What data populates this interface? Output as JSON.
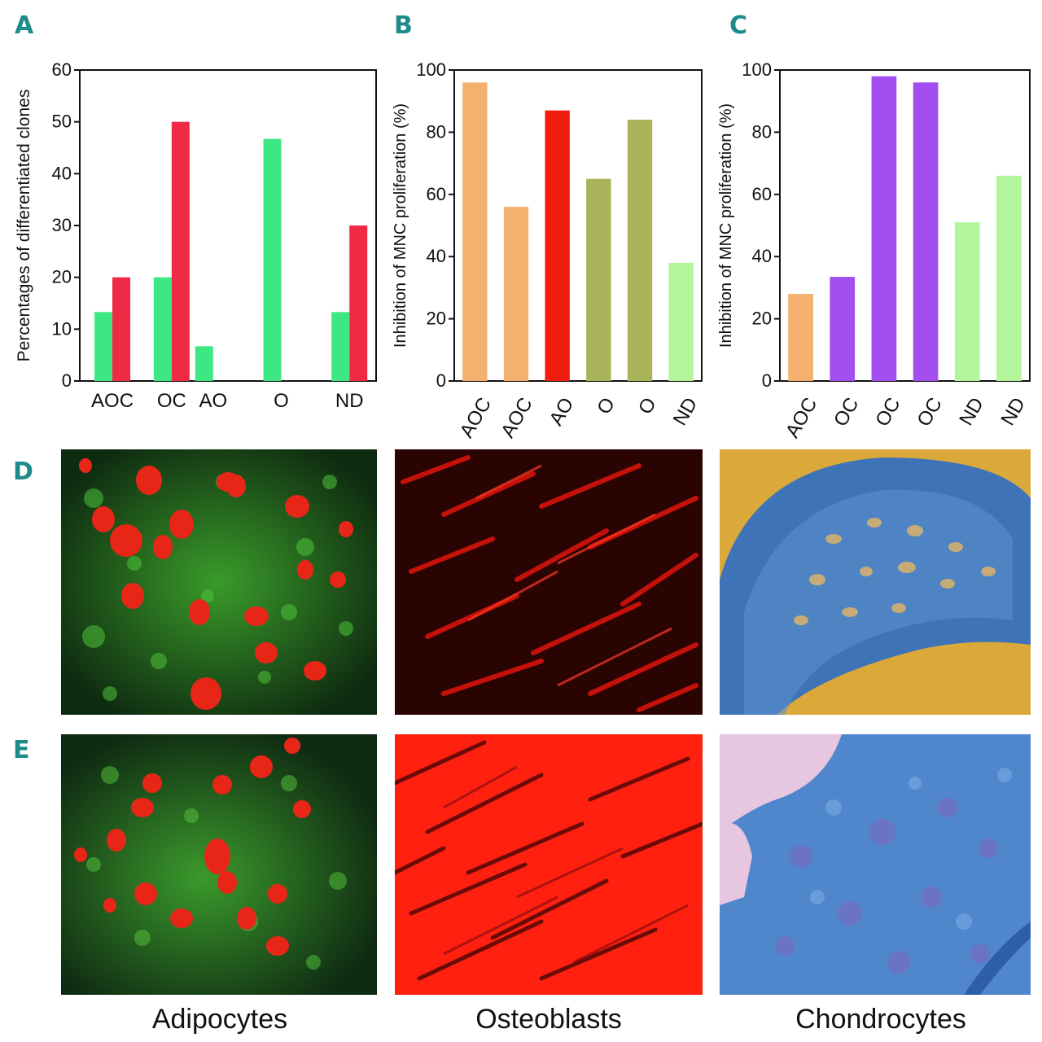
{
  "panels": {
    "a": "A",
    "b": "B",
    "c": "C",
    "d": "D",
    "e": "E"
  },
  "chart_data": [
    {
      "id": "A",
      "type": "bar",
      "ylabel": "Percentages of differentiated clones",
      "xlabel": "",
      "ylim": [
        0,
        60
      ],
      "yticks": [
        0,
        10,
        20,
        30,
        40,
        50,
        60
      ],
      "categories": [
        "AOC",
        "OC",
        "AO",
        "O",
        "ND"
      ],
      "series": [
        {
          "color": "#3de882",
          "values": [
            13.3,
            20,
            6.7,
            46.7,
            13.3
          ]
        },
        {
          "color": "#ee2a44",
          "values": [
            20,
            50,
            0,
            0,
            30
          ]
        }
      ]
    },
    {
      "id": "B",
      "type": "bar",
      "ylabel": "Inhibition of MNC proliferation (%)",
      "xlabel": "",
      "ylim": [
        0,
        100
      ],
      "yticks": [
        0,
        20,
        40,
        60,
        80,
        100
      ],
      "categories": [
        "AOC",
        "AOC",
        "AO",
        "O",
        "O",
        "ND"
      ],
      "values": [
        96,
        56,
        87,
        65,
        84,
        38
      ],
      "colors": [
        "#f4b06e",
        "#f4b06e",
        "#f01c0e",
        "#a9b45a",
        "#a9b45a",
        "#b2f59a"
      ]
    },
    {
      "id": "C",
      "type": "bar",
      "ylabel": "Inhibition of MNC proliferation (%)",
      "xlabel": "",
      "ylim": [
        0,
        100
      ],
      "yticks": [
        0,
        20,
        40,
        60,
        80,
        100
      ],
      "categories": [
        "AOC",
        "OC",
        "OC",
        "OC",
        "ND",
        "ND"
      ],
      "values": [
        28,
        33.5,
        98,
        96,
        51,
        66
      ],
      "colors": [
        "#f4b06e",
        "#a34ff0",
        "#a34ff0",
        "#a34ff0",
        "#b2f59a",
        "#b2f59a"
      ]
    }
  ],
  "captions": {
    "adipocytes": "Adipocytes",
    "osteoblasts": "Osteoblasts",
    "chondrocytes": "Chondrocytes"
  }
}
